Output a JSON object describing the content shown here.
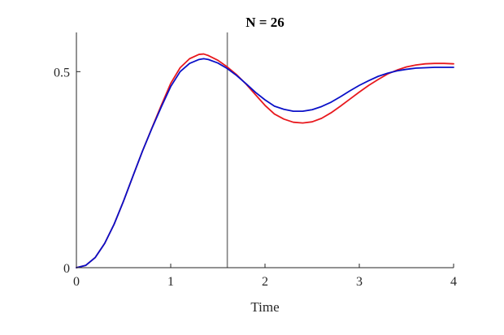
{
  "chart_data": {
    "type": "line",
    "title": "N = 26",
    "xlabel": "Time",
    "ylabel": "",
    "xlim": [
      0,
      4
    ],
    "ylim": [
      0,
      0.6
    ],
    "xticks": [
      0,
      1,
      2,
      3,
      4
    ],
    "xtick_labels": [
      "0",
      "1",
      "2",
      "3",
      "4"
    ],
    "yticks": [
      0,
      0.5
    ],
    "ytick_labels": [
      "0",
      "0.5"
    ],
    "grid": false,
    "vline_x": 1.6,
    "colors": {
      "series_red": "#e8191e",
      "series_blue": "#0a10c8",
      "vline": "#808080",
      "axis": "#262626"
    },
    "series": [
      {
        "color_key": "series_red",
        "x": [
          0,
          0.1,
          0.2,
          0.3,
          0.4,
          0.5,
          0.6,
          0.7,
          0.8,
          0.9,
          1.0,
          1.1,
          1.2,
          1.3,
          1.35,
          1.4,
          1.5,
          1.6,
          1.7,
          1.8,
          1.9,
          2.0,
          2.1,
          2.2,
          2.3,
          2.4,
          2.5,
          2.6,
          2.7,
          2.8,
          2.9,
          3.0,
          3.1,
          3.2,
          3.3,
          3.4,
          3.5,
          3.6,
          3.7,
          3.8,
          3.9,
          4.0
        ],
        "y": [
          0,
          0.006,
          0.026,
          0.062,
          0.111,
          0.17,
          0.234,
          0.297,
          0.356,
          0.414,
          0.47,
          0.51,
          0.533,
          0.544,
          0.545,
          0.541,
          0.529,
          0.512,
          0.492,
          0.468,
          0.441,
          0.414,
          0.392,
          0.379,
          0.371,
          0.369,
          0.372,
          0.381,
          0.395,
          0.412,
          0.43,
          0.448,
          0.465,
          0.48,
          0.494,
          0.504,
          0.512,
          0.517,
          0.52,
          0.521,
          0.521,
          0.52
        ]
      },
      {
        "color_key": "series_blue",
        "x": [
          0,
          0.1,
          0.2,
          0.3,
          0.4,
          0.5,
          0.6,
          0.7,
          0.8,
          0.9,
          1.0,
          1.1,
          1.2,
          1.3,
          1.35,
          1.4,
          1.5,
          1.6,
          1.7,
          1.8,
          1.9,
          2.0,
          2.1,
          2.2,
          2.3,
          2.4,
          2.5,
          2.6,
          2.7,
          2.8,
          2.9,
          3.0,
          3.1,
          3.2,
          3.3,
          3.4,
          3.5,
          3.6,
          3.7,
          3.8,
          3.9,
          4.0
        ],
        "y": [
          0,
          0.006,
          0.026,
          0.062,
          0.111,
          0.17,
          0.234,
          0.297,
          0.355,
          0.41,
          0.462,
          0.5,
          0.521,
          0.531,
          0.533,
          0.531,
          0.522,
          0.508,
          0.49,
          0.469,
          0.447,
          0.428,
          0.412,
          0.404,
          0.399,
          0.399,
          0.403,
          0.411,
          0.422,
          0.436,
          0.451,
          0.465,
          0.477,
          0.488,
          0.496,
          0.502,
          0.506,
          0.509,
          0.51,
          0.511,
          0.511,
          0.511
        ]
      }
    ]
  }
}
